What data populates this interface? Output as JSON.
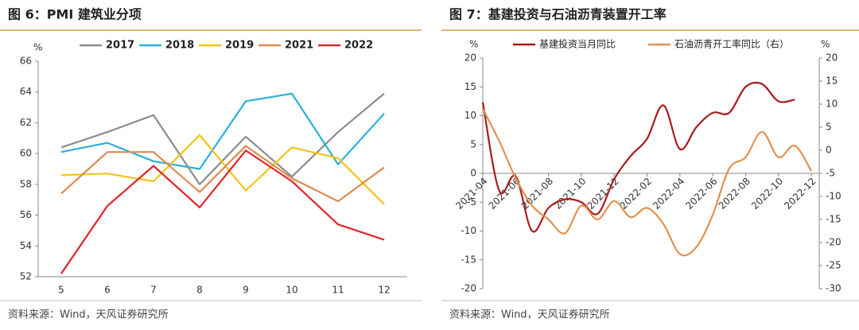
{
  "chart_data": [
    {
      "type": "line",
      "title": "图 6：PMI 建筑业分项",
      "y_label": "%",
      "source": "资料来源：Wind，天风证券研究所",
      "categories": [
        "5",
        "6",
        "7",
        "8",
        "9",
        "10",
        "11",
        "12"
      ],
      "ylim": [
        52,
        66
      ],
      "yticks": [
        52,
        54,
        56,
        58,
        60,
        62,
        64,
        66
      ],
      "smooth": false,
      "series": [
        {
          "name": "2017",
          "color": "#8c8c8c",
          "values": [
            60.4,
            61.4,
            62.5,
            58.0,
            61.1,
            58.5,
            61.4,
            63.9
          ]
        },
        {
          "name": "2018",
          "color": "#2ab0d8",
          "values": [
            60.1,
            60.7,
            59.5,
            59.0,
            63.4,
            63.9,
            59.3,
            62.6
          ]
        },
        {
          "name": "2019",
          "color": "#f2c417",
          "values": [
            58.6,
            58.7,
            58.2,
            61.2,
            57.6,
            60.4,
            59.7,
            56.7
          ]
        },
        {
          "name": "2021",
          "color": "#e08a50",
          "values": [
            57.4,
            60.1,
            60.1,
            57.5,
            60.5,
            58.4,
            56.9,
            59.1
          ]
        },
        {
          "name": "2022",
          "color": "#e32428",
          "values": [
            52.2,
            56.6,
            59.2,
            56.5,
            60.2,
            58.2,
            55.4,
            54.4
          ]
        }
      ]
    },
    {
      "type": "line",
      "title": "图 7：基建投资与石油沥青装置开工率",
      "y_label": "%",
      "y2_label": "%",
      "source": "资料来源：Wind，天风证券研究所",
      "x": [
        "2021-04",
        "2021-05",
        "2021-06",
        "2021-07",
        "2021-08",
        "2021-09",
        "2021-10",
        "2021-11",
        "2021-12",
        "2022-01",
        "2022-02",
        "2022-03",
        "2022-04",
        "2022-05",
        "2022-06",
        "2022-07",
        "2022-08",
        "2022-09",
        "2022-10",
        "2022-11",
        "2022-12"
      ],
      "xticks": [
        "2021-04",
        "2021-06",
        "2021-08",
        "2021-10",
        "2021-12",
        "2022-02",
        "2022-04",
        "2022-06",
        "2022-08",
        "2022-10",
        "2022-12"
      ],
      "ylim": [
        -20,
        20
      ],
      "yticks": [
        -20,
        -15,
        -10,
        -5,
        0,
        5,
        10,
        15,
        20
      ],
      "y2lim": [
        -30,
        20
      ],
      "y2ticks": [
        -30,
        -25,
        -20,
        -15,
        -10,
        -5,
        0,
        5,
        10,
        15,
        20
      ],
      "smooth": true,
      "series": [
        {
          "name": "基建投资当月同比",
          "color": "#a81c1c",
          "values": [
            12.3,
            -3,
            -0.5,
            -10,
            -6,
            -4.5,
            -5,
            -7,
            -1,
            3,
            6,
            11.8,
            4.2,
            8,
            10.5,
            10.5,
            15,
            15.5,
            12.5,
            12.8,
            null
          ]
        },
        {
          "name": "石油沥青开工率同比（右）",
          "color": "#e3904f",
          "axis": "y2",
          "values": [
            9,
            2,
            -6,
            -12,
            -15,
            -18,
            -12,
            -15,
            -11,
            -14.5,
            -12.5,
            -16,
            -22.5,
            -21,
            -14,
            -4,
            -1.5,
            4,
            -1.5,
            1,
            -4.5
          ]
        }
      ]
    }
  ]
}
